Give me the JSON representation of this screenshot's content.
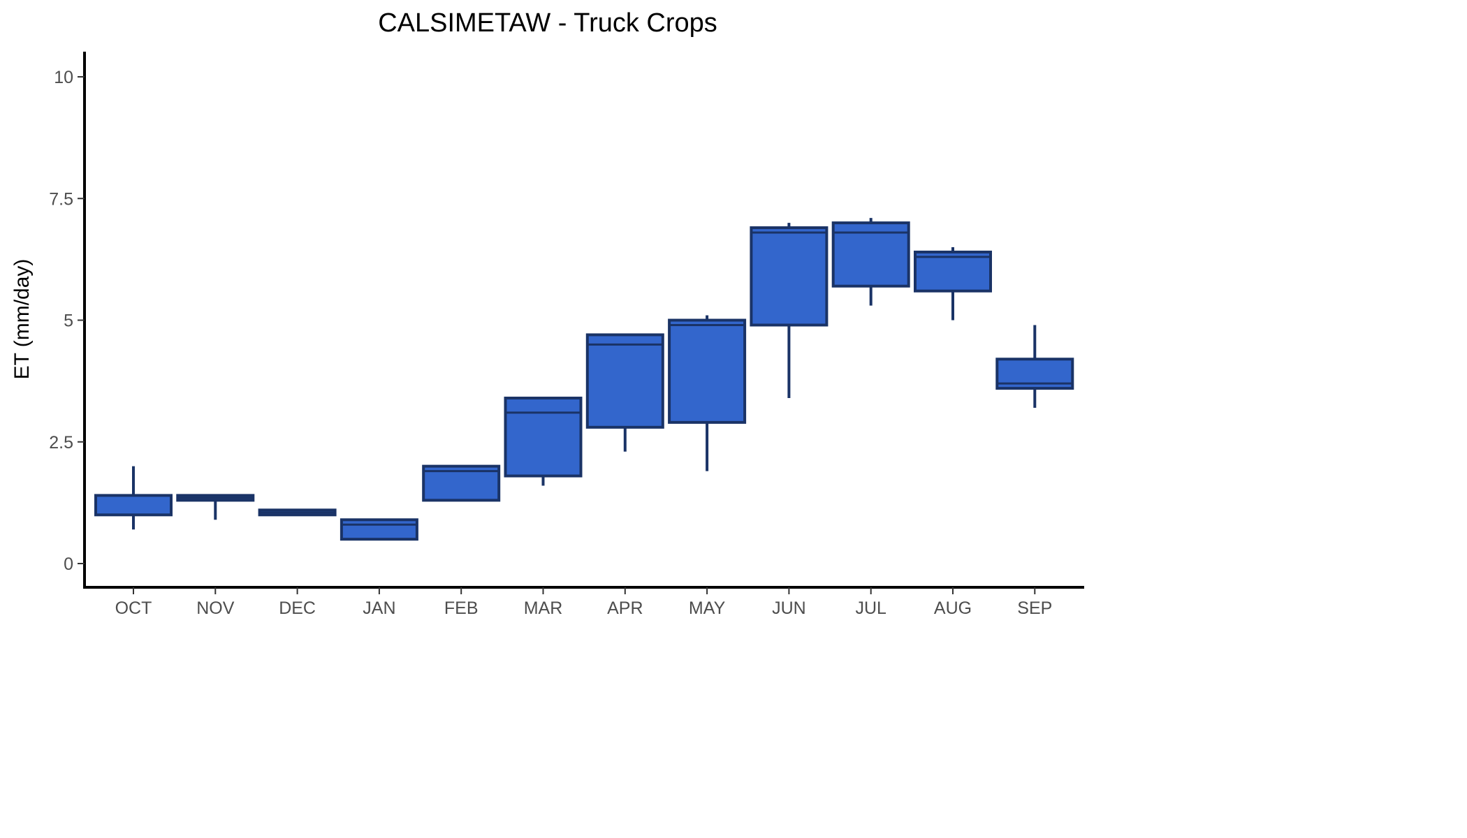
{
  "chart_data": {
    "type": "boxplot",
    "title": "CALSIMETAW - Truck Crops",
    "xlabel": "",
    "ylabel": "ET (mm/day)",
    "ylim": [
      -0.5,
      10.5
    ],
    "yticks": [
      0,
      2.5,
      5,
      7.5,
      10
    ],
    "ytick_labels": [
      "0",
      "2.5",
      "5",
      "7.5",
      "10"
    ],
    "grid": false,
    "categories": [
      "OCT",
      "NOV",
      "DEC",
      "JAN",
      "FEB",
      "MAR",
      "APR",
      "MAY",
      "JUN",
      "JUL",
      "AUG",
      "SEP"
    ],
    "boxes": [
      {
        "min": 0.7,
        "q1": 1.0,
        "median": 1.4,
        "q3": 1.4,
        "max": 2.0
      },
      {
        "min": 0.9,
        "q1": 1.3,
        "median": 1.35,
        "q3": 1.4,
        "max": 1.4
      },
      {
        "min": 1.0,
        "q1": 1.0,
        "median": 1.05,
        "q3": 1.1,
        "max": 1.1
      },
      {
        "min": 0.5,
        "q1": 0.5,
        "median": 0.8,
        "q3": 0.9,
        "max": 0.9
      },
      {
        "min": 1.3,
        "q1": 1.3,
        "median": 1.9,
        "q3": 2.0,
        "max": 2.0
      },
      {
        "min": 1.6,
        "q1": 1.8,
        "median": 3.1,
        "q3": 3.4,
        "max": 3.4
      },
      {
        "min": 2.3,
        "q1": 2.8,
        "median": 4.5,
        "q3": 4.7,
        "max": 4.7
      },
      {
        "min": 1.9,
        "q1": 2.9,
        "median": 4.9,
        "q3": 5.0,
        "max": 5.1
      },
      {
        "min": 3.4,
        "q1": 4.9,
        "median": 6.8,
        "q3": 6.9,
        "max": 7.0
      },
      {
        "min": 5.3,
        "q1": 5.7,
        "median": 6.8,
        "q3": 7.0,
        "max": 7.1
      },
      {
        "min": 5.0,
        "q1": 5.6,
        "median": 6.3,
        "q3": 6.4,
        "max": 6.5
      },
      {
        "min": 3.2,
        "q1": 3.6,
        "median": 3.7,
        "q3": 4.2,
        "max": 4.9
      }
    ],
    "colors": {
      "box_fill": "#3366cc",
      "box_stroke": "#1a3366",
      "axis": "#000000",
      "tick_label": "#4d4d4d"
    }
  }
}
